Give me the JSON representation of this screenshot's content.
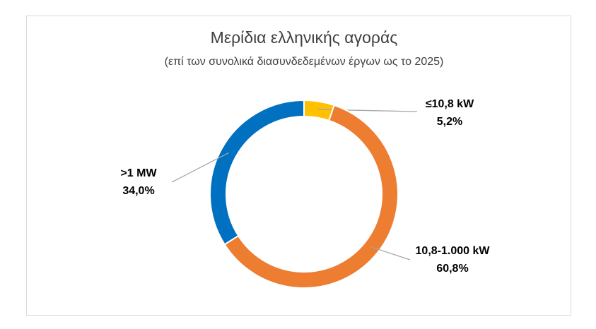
{
  "chart_data": {
    "type": "donut",
    "title": "Μερίδια ελληνικής αγοράς",
    "subtitle": "(επί των συνολικά διασυνδεδεμένων έργων ως το 2025)",
    "categories": [
      "≤10,8 kW",
      "10,8-1.000 kW",
      ">1 MW"
    ],
    "values": [
      5.2,
      60.8,
      34.0
    ],
    "value_labels": [
      "5,2%",
      "60,8%",
      "34,0%"
    ],
    "colors": [
      "#ffc000",
      "#ed7d31",
      "#0070c0"
    ]
  }
}
